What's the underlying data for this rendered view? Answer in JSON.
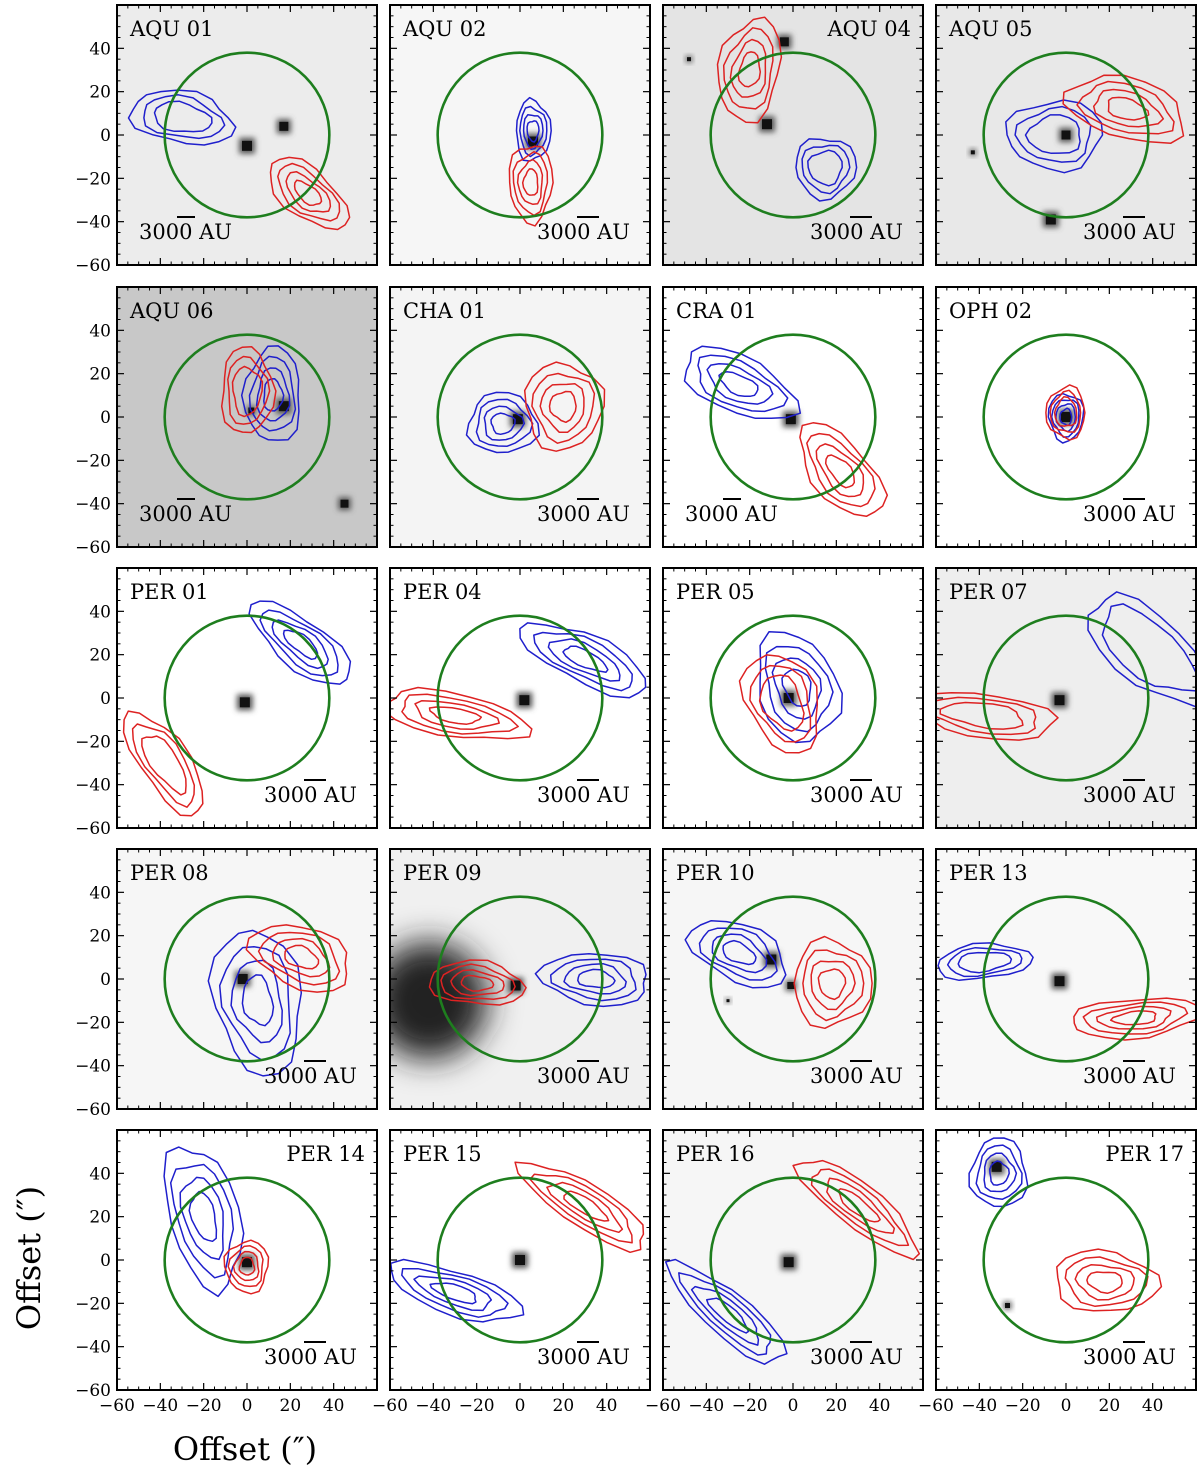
{
  "chart_data": {
    "type": "scatter",
    "description_units": "arcsec",
    "xlabel": "Offset (″)",
    "ylabel": "Offset (″)",
    "xlim": [
      -60,
      60
    ],
    "ylim": [
      -60,
      60
    ],
    "xticks": [
      -60,
      -40,
      -20,
      0,
      20,
      40
    ],
    "yticks": [
      -60,
      -40,
      -20,
      0,
      20,
      40
    ],
    "scalebar_label": "3000 AU",
    "circle_radius": 38,
    "colors": {
      "blue": "#1f1fcc",
      "red": "#dd2222",
      "green": "#1e7e1e",
      "frame": "#000000"
    },
    "panels": [
      {
        "name": "AQU 01",
        "label_pos": "left",
        "bg": "#ececec",
        "sources": [
          [
            0,
            -5,
            1
          ],
          [
            17,
            4,
            0.9
          ]
        ],
        "blue": {
          "c": [
            -30,
            8
          ],
          "rx": 24,
          "ry": 12,
          "rot": -10,
          "n": 3
        },
        "red": {
          "c": [
            28,
            -27
          ],
          "rx": 22,
          "ry": 11,
          "rot": -40,
          "n": 4
        },
        "scale_pos": "left"
      },
      {
        "name": "AQU 02",
        "label_pos": "left",
        "bg": "#f6f6f6",
        "sources": [
          [
            6,
            -3,
            1
          ]
        ],
        "blue": {
          "c": [
            6,
            2
          ],
          "rx": 8,
          "ry": 14,
          "rot": 0,
          "n": 4
        },
        "red": {
          "c": [
            5,
            -22
          ],
          "rx": 10,
          "ry": 18,
          "rot": 0,
          "n": 4
        },
        "scale_pos": "right"
      },
      {
        "name": "AQU 04",
        "label_pos": "right",
        "bg": "#e4e4e4",
        "sources": [
          [
            -12,
            5,
            1
          ],
          [
            -4,
            43,
            0.9
          ],
          [
            -48,
            35,
            0.4
          ]
        ],
        "blue": {
          "c": [
            15,
            -15
          ],
          "rx": 14,
          "ry": 14,
          "rot": 0,
          "n": 3
        },
        "red": {
          "c": [
            -20,
            30
          ],
          "rx": 14,
          "ry": 24,
          "rot": -10,
          "n": 4
        },
        "scale_pos": "right"
      },
      {
        "name": "AQU 05",
        "label_pos": "left",
        "bg": "#e8e8e8",
        "sources": [
          [
            0,
            0,
            0.9
          ],
          [
            -7,
            -39,
            1
          ],
          [
            -43,
            -8,
            0.4
          ]
        ],
        "blue": {
          "c": [
            -5,
            0
          ],
          "rx": 22,
          "ry": 16,
          "rot": 0,
          "n": 3
        },
        "red": {
          "c": [
            28,
            12
          ],
          "rx": 28,
          "ry": 14,
          "rot": -15,
          "n": 4
        },
        "scale_pos": "right"
      },
      {
        "name": "AQU 06",
        "label_pos": "left",
        "bg": "#c8c8c8",
        "sources": [
          [
            17,
            5,
            1
          ],
          [
            45,
            -40,
            0.8
          ],
          [
            2,
            3,
            0.6
          ]
        ],
        "blue": {
          "c": [
            12,
            10
          ],
          "rx": 13,
          "ry": 22,
          "rot": 0,
          "n": 4
        },
        "red": {
          "c": [
            0,
            12
          ],
          "rx": 12,
          "ry": 20,
          "rot": 0,
          "n": 3
        },
        "scale_pos": "left"
      },
      {
        "name": "CHA 01",
        "label_pos": "left",
        "bg": "#f4f4f4",
        "sources": [
          [
            -1,
            -1,
            1
          ]
        ],
        "blue": {
          "c": [
            -8,
            -3
          ],
          "rx": 16,
          "ry": 14,
          "rot": 0,
          "n": 4
        },
        "red": {
          "c": [
            20,
            5
          ],
          "rx": 18,
          "ry": 20,
          "rot": 0,
          "n": 4
        },
        "scale_pos": "right"
      },
      {
        "name": "CRA 01",
        "label_pos": "left",
        "bg": "#ffffff",
        "sources": [
          [
            -1,
            -1,
            1
          ]
        ],
        "blue": {
          "c": [
            -25,
            15
          ],
          "rx": 28,
          "ry": 13,
          "rot": -25,
          "n": 4
        },
        "red": {
          "c": [
            22,
            -25
          ],
          "rx": 26,
          "ry": 13,
          "rot": -50,
          "n": 4
        },
        "scale_pos": "left"
      },
      {
        "name": "OPH 02",
        "label_pos": "left",
        "bg": "#ffffff",
        "sources": [
          [
            0,
            0,
            1
          ]
        ],
        "blue": {
          "c": [
            0,
            0
          ],
          "rx": 8,
          "ry": 11,
          "rot": 0,
          "n": 4
        },
        "red": {
          "c": [
            0,
            2
          ],
          "rx": 9,
          "ry": 12,
          "rot": 0,
          "n": 3
        },
        "scale_pos": "right"
      },
      {
        "name": "PER 01",
        "label_pos": "left",
        "bg": "#ffffff",
        "sources": [
          [
            -1,
            -2,
            1
          ]
        ],
        "blue": {
          "c": [
            25,
            25
          ],
          "rx": 28,
          "ry": 11,
          "rot": -38,
          "n": 4
        },
        "red": {
          "c": [
            -38,
            -30
          ],
          "rx": 28,
          "ry": 11,
          "rot": -55,
          "n": 3
        },
        "scale_pos": "right"
      },
      {
        "name": "PER 04",
        "label_pos": "left",
        "bg": "#ffffff",
        "sources": [
          [
            2,
            -1,
            1
          ]
        ],
        "blue": {
          "c": [
            30,
            18
          ],
          "rx": 32,
          "ry": 11,
          "rot": -25,
          "n": 4
        },
        "red": {
          "c": [
            -30,
            -8
          ],
          "rx": 34,
          "ry": 10,
          "rot": -10,
          "n": 4
        },
        "scale_pos": "right"
      },
      {
        "name": "PER 05",
        "label_pos": "left",
        "bg": "#ffffff",
        "sources": [
          [
            -2,
            0,
            1
          ]
        ],
        "blue": {
          "c": [
            2,
            5
          ],
          "rx": 18,
          "ry": 26,
          "rot": 20,
          "n": 4
        },
        "red": {
          "c": [
            -5,
            -2
          ],
          "rx": 16,
          "ry": 24,
          "rot": 25,
          "n": 3
        },
        "scale_pos": "right"
      },
      {
        "name": "PER 07",
        "label_pos": "left",
        "bg": "#eeeeee",
        "sources": [
          [
            -3,
            -1,
            1
          ]
        ],
        "blue": {
          "c": [
            38,
            22
          ],
          "rx": 34,
          "ry": 16,
          "rot": -40,
          "n": 2
        },
        "red": {
          "c": [
            -38,
            -8
          ],
          "rx": 34,
          "ry": 10,
          "rot": -8,
          "n": 3
        },
        "scale_pos": "right"
      },
      {
        "name": "PER 08",
        "label_pos": "left",
        "bg": "#f6f6f6",
        "sources": [
          [
            -2,
            0,
            1
          ]
        ],
        "blue": {
          "c": [
            5,
            -10
          ],
          "rx": 20,
          "ry": 34,
          "rot": 10,
          "n": 4
        },
        "red": {
          "c": [
            25,
            10
          ],
          "rx": 24,
          "ry": 14,
          "rot": -20,
          "n": 4
        },
        "scale_pos": "right"
      },
      {
        "name": "PER 09",
        "label_pos": "left",
        "bg": "#f0f0f0",
        "sources": [
          [
            -42,
            -10,
            3.2
          ],
          [
            -2,
            -3,
            1
          ]
        ],
        "blue": {
          "c": [
            35,
            0
          ],
          "rx": 25,
          "ry": 12,
          "rot": -5,
          "n": 4
        },
        "red": {
          "c": [
            -20,
            -2
          ],
          "rx": 22,
          "ry": 10,
          "rot": -5,
          "n": 4
        },
        "scale_pos": "right"
      },
      {
        "name": "PER 10",
        "label_pos": "left",
        "bg": "#f6f6f6",
        "sources": [
          [
            -10,
            9,
            1
          ],
          [
            -1,
            -3,
            0.7
          ],
          [
            -30,
            -10,
            0.3
          ]
        ],
        "blue": {
          "c": [
            -25,
            12
          ],
          "rx": 24,
          "ry": 13,
          "rot": -25,
          "n": 4
        },
        "red": {
          "c": [
            18,
            -2
          ],
          "rx": 18,
          "ry": 20,
          "rot": 0,
          "n": 4
        },
        "scale_pos": "right"
      },
      {
        "name": "PER 13",
        "label_pos": "left",
        "bg": "#f8f8f8",
        "sources": [
          [
            -3,
            -1,
            1
          ]
        ],
        "blue": {
          "c": [
            -38,
            8
          ],
          "rx": 22,
          "ry": 8,
          "rot": 5,
          "n": 3
        },
        "red": {
          "c": [
            32,
            -18
          ],
          "rx": 30,
          "ry": 9,
          "rot": 5,
          "n": 4
        },
        "scale_pos": "right"
      },
      {
        "name": "PER 14",
        "label_pos": "right",
        "bg": "#ffffff",
        "sources": [
          [
            0,
            -1,
            1
          ]
        ],
        "blue": {
          "c": [
            -20,
            20
          ],
          "rx": 16,
          "ry": 34,
          "rot": 15,
          "n": 4
        },
        "red": {
          "c": [
            0,
            -3
          ],
          "rx": 10,
          "ry": 12,
          "rot": 0,
          "n": 4
        },
        "scale_pos": "right"
      },
      {
        "name": "PER 15",
        "label_pos": "left",
        "bg": "#ffffff",
        "sources": [
          [
            0,
            0,
            1
          ]
        ],
        "blue": {
          "c": [
            -30,
            -15
          ],
          "rx": 32,
          "ry": 10,
          "rot": -18,
          "n": 4
        },
        "red": {
          "c": [
            30,
            25
          ],
          "rx": 34,
          "ry": 10,
          "rot": -32,
          "n": 4
        },
        "scale_pos": "right"
      },
      {
        "name": "PER 16",
        "label_pos": "left",
        "bg": "#f6f6f6",
        "sources": [
          [
            -2,
            -1,
            1
          ]
        ],
        "blue": {
          "c": [
            -30,
            -25
          ],
          "rx": 34,
          "ry": 10,
          "rot": -40,
          "n": 4
        },
        "red": {
          "c": [
            30,
            25
          ],
          "rx": 34,
          "ry": 10,
          "rot": -38,
          "n": 4
        },
        "scale_pos": "right"
      },
      {
        "name": "PER 17",
        "label_pos": "right",
        "bg": "#ffffff",
        "sources": [
          [
            -32,
            43,
            1
          ],
          [
            -27,
            -21,
            0.5
          ]
        ],
        "blue": {
          "c": [
            -31,
            40
          ],
          "rx": 13,
          "ry": 16,
          "rot": 0,
          "n": 4
        },
        "red": {
          "c": [
            18,
            -10
          ],
          "rx": 24,
          "ry": 14,
          "rot": -5,
          "n": 4
        },
        "scale_pos": "right"
      }
    ]
  }
}
